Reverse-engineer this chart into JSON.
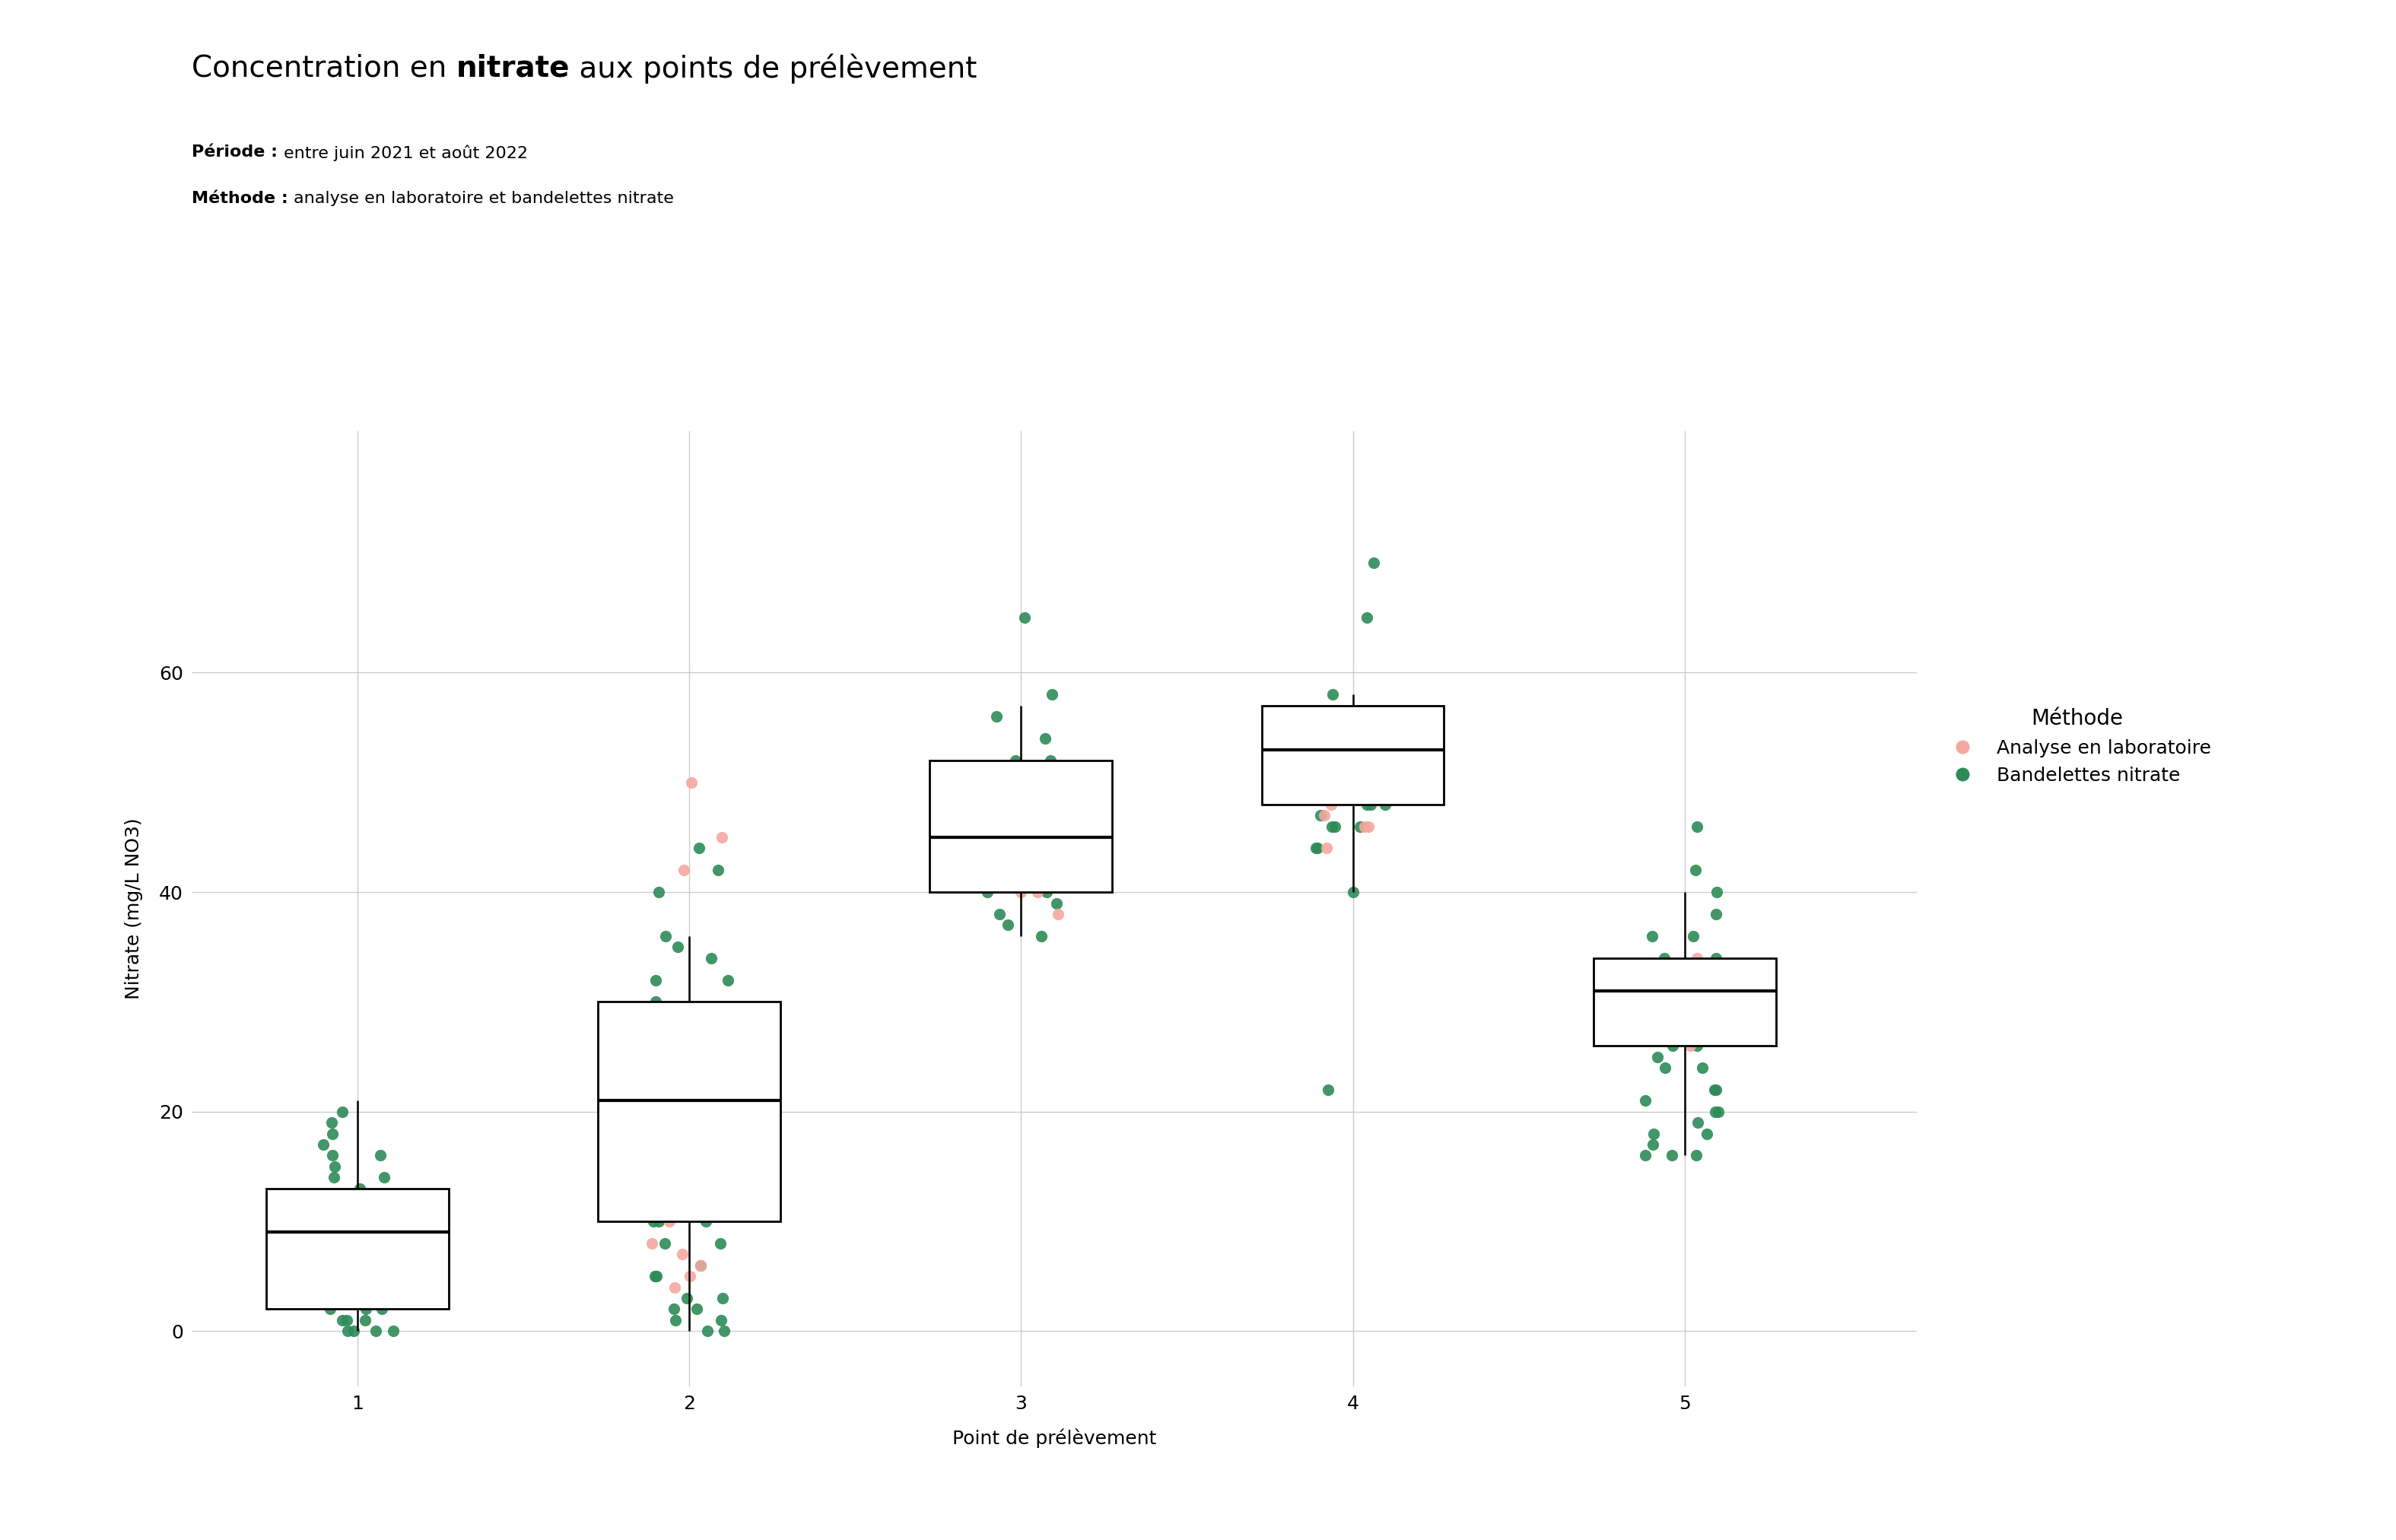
{
  "ylabel": "Nitrate (mg/L NO3)",
  "xlabel": "Point de prélèvement",
  "legend_title": "Méthode",
  "legend_lab": [
    "Analyse en laboratoire",
    "Bandelettes nitrate"
  ],
  "color_lab": "#f4a8a0",
  "color_band": "#2d8b57",
  "ylim": [
    -5,
    82
  ],
  "yticks": [
    0,
    20,
    40,
    60
  ],
  "box_params": {
    "1": {
      "q1": 2,
      "median": 9,
      "q3": 13,
      "whislo": 0,
      "whishi": 21
    },
    "2": {
      "q1": 10,
      "median": 21,
      "q3": 30,
      "whislo": 0,
      "whishi": 36
    },
    "3": {
      "q1": 40,
      "median": 45,
      "q3": 52,
      "whislo": 36,
      "whishi": 57
    },
    "4": {
      "q1": 48,
      "median": 53,
      "q3": 57,
      "whislo": 40,
      "whishi": 58
    },
    "5": {
      "q1": 26,
      "median": 31,
      "q3": 34,
      "whislo": 16,
      "whishi": 40
    }
  },
  "points_lab": {
    "1": [
      9,
      8,
      10,
      7,
      9,
      12,
      5,
      6,
      8,
      10,
      9,
      7,
      11,
      8,
      10
    ],
    "2": [
      20,
      22,
      19,
      21,
      50,
      42,
      18,
      12,
      8,
      6,
      4,
      5,
      45,
      10,
      7
    ],
    "3": [
      40,
      42,
      44,
      38,
      46,
      40,
      48,
      46,
      45,
      43
    ],
    "4": [
      50,
      52,
      48,
      46,
      44,
      46,
      50,
      52,
      47
    ],
    "5": [
      27,
      29,
      28,
      30,
      32,
      31,
      33,
      34,
      26,
      28,
      29
    ]
  },
  "points_band": {
    "1": [
      0,
      0,
      0,
      1,
      2,
      3,
      4,
      5,
      6,
      8,
      10,
      12,
      14,
      15,
      16,
      18,
      20,
      13,
      11,
      9,
      7,
      5,
      3,
      1,
      0,
      16,
      14,
      12,
      8,
      4,
      2,
      19,
      17,
      6,
      4,
      2,
      1
    ],
    "2": [
      0,
      1,
      2,
      3,
      5,
      8,
      10,
      12,
      14,
      16,
      18,
      20,
      22,
      24,
      26,
      28,
      30,
      32,
      34,
      36,
      14,
      12,
      10,
      25,
      28,
      32,
      35,
      40,
      42,
      44,
      16,
      5,
      2,
      1,
      0,
      6,
      8,
      3,
      10,
      12
    ],
    "3": [
      36,
      38,
      40,
      42,
      44,
      46,
      48,
      50,
      52,
      54,
      56,
      58,
      65,
      42,
      44,
      46,
      48,
      50,
      52,
      40,
      41,
      43,
      45,
      47,
      49,
      51,
      37,
      39,
      44,
      46
    ],
    "4": [
      40,
      44,
      46,
      48,
      50,
      52,
      54,
      56,
      58,
      65,
      70,
      46,
      48,
      50,
      52,
      54,
      56,
      47,
      49,
      51,
      22,
      44,
      46,
      48
    ],
    "5": [
      16,
      18,
      20,
      22,
      24,
      26,
      28,
      30,
      32,
      34,
      36,
      38,
      40,
      42,
      28,
      26,
      24,
      22,
      20,
      18,
      16,
      30,
      32,
      34,
      36,
      16,
      17,
      19,
      21,
      25,
      27,
      29,
      46
    ]
  },
  "background_color": "#ffffff",
  "grid_color": "#cccccc",
  "box_color": "#000000",
  "box_width": 0.55,
  "title_fontsize": 28,
  "subtitle_fontsize": 16,
  "tick_fontsize": 18,
  "label_fontsize": 18
}
